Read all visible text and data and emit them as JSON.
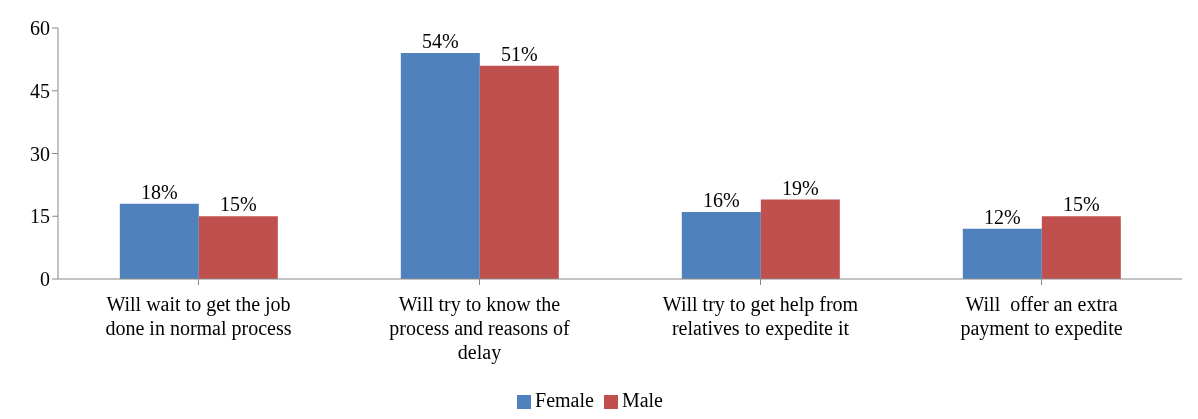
{
  "chart_data": {
    "type": "bar",
    "categories": [
      "Will wait to get the job done in normal process",
      "Will try to know the process and reasons of delay",
      "Will try to get help from relatives to expedite it",
      "Will  offer an extra payment to expedite"
    ],
    "series": [
      {
        "name": "Female",
        "color": "#4f81bd",
        "values": [
          18,
          54,
          16,
          12
        ],
        "value_labels": [
          "18%",
          "54%",
          "16%",
          "12%"
        ]
      },
      {
        "name": "Male",
        "color": "#c0504d",
        "values": [
          15,
          51,
          19,
          15
        ],
        "value_labels": [
          "15%",
          "51%",
          "19%",
          "15%"
        ]
      }
    ],
    "ylim": [
      0,
      60
    ],
    "yticks": [
      0,
      15,
      30,
      45,
      60
    ],
    "grid": false,
    "legend": "bottom"
  }
}
